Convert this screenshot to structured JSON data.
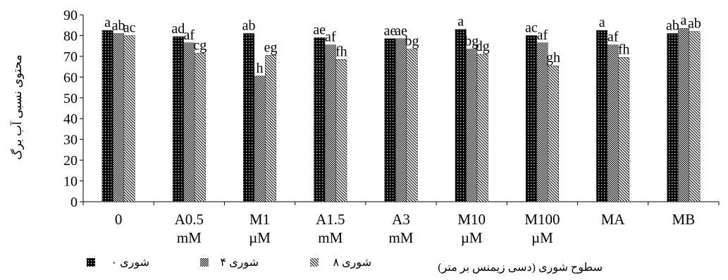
{
  "chart_data": {
    "type": "bar",
    "ylabel": "محتوی نسبی آب برگ",
    "xlabel": "سطوح شوری (دسی زیمنس بر متر)",
    "ylim": [
      0,
      90
    ],
    "yticks": [
      0,
      10,
      20,
      30,
      40,
      50,
      60,
      70,
      80,
      90
    ],
    "grid": false,
    "legend_position": "bottom",
    "categories": [
      {
        "line1": "0",
        "line2": ""
      },
      {
        "line1": "A0.5",
        "line2": "mM"
      },
      {
        "line1": "M1",
        "line2": "µM"
      },
      {
        "line1": "A1.5",
        "line2": "mM"
      },
      {
        "line1": "A3",
        "line2": "mM"
      },
      {
        "line1": "M10",
        "line2": "µM"
      },
      {
        "line1": "M100",
        "line2": "µM"
      },
      {
        "line1": "MA",
        "line2": ""
      },
      {
        "line1": "MB",
        "line2": ""
      }
    ],
    "series": [
      {
        "name": "شوری ۰",
        "pattern": "dots-dark",
        "values": [
          82.5,
          79.5,
          81,
          79,
          78.5,
          83,
          80,
          82.5,
          81
        ],
        "labels": [
          "a",
          "ad",
          "ab",
          "ae",
          "ae",
          "a",
          "ac",
          "a",
          "ab"
        ]
      },
      {
        "name": "شوری ۴",
        "pattern": "checker",
        "values": [
          81,
          76.5,
          60.5,
          75.5,
          78.5,
          73.5,
          76.5,
          75.5,
          83.5
        ],
        "labels": [
          "ab",
          "af",
          "h",
          "af",
          "ae",
          "bg",
          "af",
          "af",
          "a"
        ]
      },
      {
        "name": "شوری ۸",
        "pattern": "diagonal",
        "values": [
          80,
          71.5,
          70.5,
          68.5,
          73.5,
          71,
          65.5,
          69.5,
          82
        ],
        "labels": [
          "ac",
          "cg",
          "eg",
          "fh",
          "bg",
          "dg",
          "gh",
          "fh",
          "ab"
        ]
      }
    ]
  }
}
